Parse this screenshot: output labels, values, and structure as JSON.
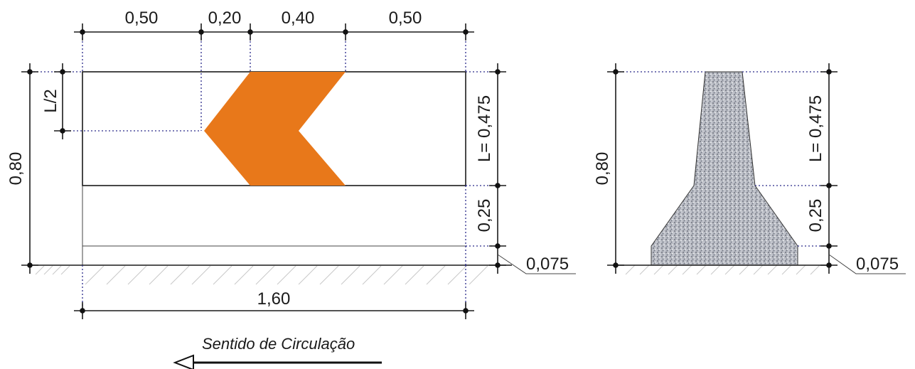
{
  "front_view": {
    "top_dims": [
      "0,50",
      "0,20",
      "0,40",
      "0,50"
    ],
    "left_half_label": "L/2",
    "left_height": "0,80",
    "right_dims": [
      "L= 0,475",
      "0,25",
      "0,075"
    ],
    "bottom_width": "1,60",
    "chevron_color": "#E8781A"
  },
  "side_view": {
    "left_height": "0,80",
    "right_dims": [
      "L= 0,475",
      "0,25",
      "0,075"
    ]
  },
  "direction": {
    "label": "Sentido de Circulação"
  }
}
